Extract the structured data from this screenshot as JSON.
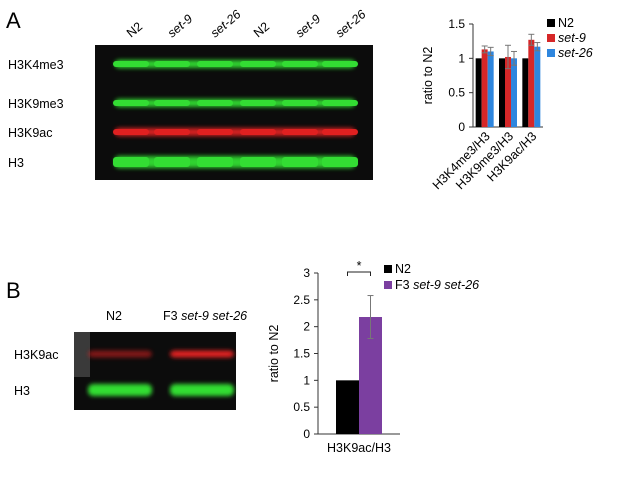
{
  "panels": {
    "a": {
      "letter": "A",
      "blot": {
        "lanes": [
          "N2",
          "set-9",
          "set-26",
          "N2",
          "set-9",
          "set-26"
        ],
        "rows": [
          "H3K4me3",
          "H3K9me3",
          "H3K9ac",
          "H3"
        ],
        "row_colors": [
          "#33dd33",
          "#33dd33",
          "#e02020",
          "#33dd33"
        ]
      }
    },
    "b": {
      "letter": "B",
      "blot": {
        "lanes": [
          "N2",
          "F3 set-9 set-26"
        ],
        "rows": [
          "H3K9ac",
          "H3"
        ],
        "row_colors": [
          "#e02020",
          "#33dd33"
        ]
      }
    }
  },
  "chart_data": [
    {
      "type": "bar",
      "ylabel": "ratio to N2",
      "ylim": [
        0,
        1.5
      ],
      "yticks": [
        "0",
        "0.5",
        "1",
        "1.5"
      ],
      "categories": [
        "H3K4me3/H3",
        "H3K9me3/H3",
        "H3K9ac/H3"
      ],
      "series": [
        {
          "name": "N2",
          "color": "#000000",
          "values": [
            1.0,
            1.0,
            1.0
          ],
          "errors": [
            0,
            0,
            0
          ]
        },
        {
          "name": "set-9",
          "color": "#d62728",
          "values": [
            1.13,
            1.02,
            1.27
          ],
          "errors": [
            0.05,
            0.17,
            0.08
          ]
        },
        {
          "name": "set-26",
          "color": "#2e86de",
          "values": [
            1.1,
            1.0,
            1.17
          ],
          "errors": [
            0.06,
            0.1,
            0.06
          ]
        }
      ],
      "legend": "top-right"
    },
    {
      "type": "bar",
      "ylabel": "ratio to N2",
      "ylim": [
        0,
        3
      ],
      "yticks": [
        "0",
        "0.5",
        "1",
        "1.5",
        "2",
        "2.5",
        "3"
      ],
      "categories": [
        "H3K9ac/H3"
      ],
      "series": [
        {
          "name": "N2",
          "color": "#000000",
          "values": [
            1.0
          ],
          "errors": [
            0
          ]
        },
        {
          "name": "F3 set-9 set-26",
          "color": "#7b3fa0",
          "values": [
            2.18
          ],
          "errors": [
            0.4
          ]
        }
      ],
      "annotation": "*",
      "legend": "top-right"
    }
  ]
}
